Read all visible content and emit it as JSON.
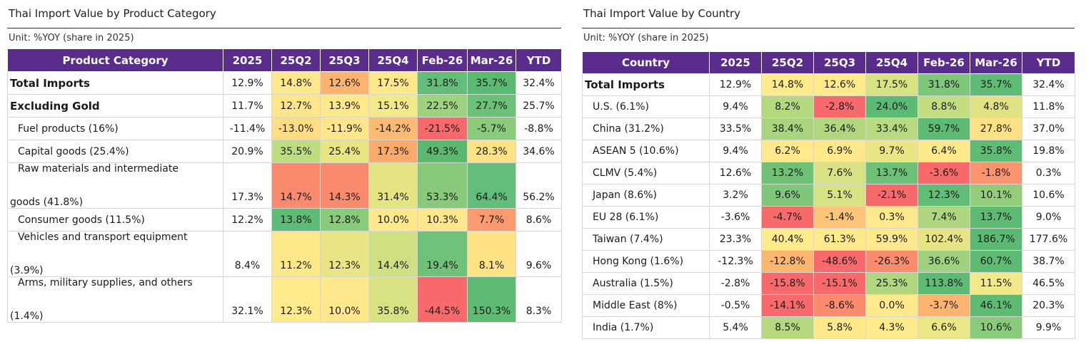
{
  "product_panel": {
    "title": "Thai Import Value by Product Category",
    "unit": "Unit: %YOY (share in 2025)",
    "headers": [
      "Product Category",
      "2025",
      "25Q2",
      "25Q3",
      "25Q4",
      "Feb-26",
      "Mar-26",
      "YTD"
    ],
    "rows": [
      {
        "label": "Total Imports",
        "values": [
          "12.9%",
          "14.8%",
          "12.6%",
          "17.5%",
          "31.8%",
          "35.7%",
          "32.4%"
        ],
        "colors": [
          "#ffe98c",
          "#fdb470",
          "#ffe98c",
          "#63be7b",
          "#5aba72",
          ""
        ]
      },
      {
        "label": "Excluding Gold",
        "values": [
          "11.7%",
          "12.7%",
          "13.9%",
          "15.1%",
          "22.5%",
          "27.7%",
          "25.7%"
        ],
        "colors": [
          "#ffe68a",
          "#ffe98c",
          "#f2e98a",
          "#9fd27f",
          "#6cc178",
          ""
        ]
      },
      {
        "label": "Fuel products (16%)",
        "values": [
          "-11.4%",
          "-13.0%",
          "-11.9%",
          "-14.2%",
          "-21.5%",
          "-5.7%",
          "-8.8%"
        ],
        "colors": [
          "#ffdd82",
          "#ffe58b",
          "#fdba72",
          "#f8696b",
          "#8acb7b",
          ""
        ]
      },
      {
        "label": "Capital goods (25.4%)",
        "values": [
          "20.9%",
          "35.5%",
          "25.4%",
          "17.3%",
          "49.3%",
          "28.3%",
          "34.6%"
        ],
        "colors": [
          "#bfdc81",
          "#e8e583",
          "#fcaa6b",
          "#5ab96f",
          "#fee283",
          ""
        ]
      },
      {
        "label_lines": [
          "Raw materials and intermediate",
          "goods (41.8%)"
        ],
        "values": [
          "17.3%",
          "14.7%",
          "14.3%",
          "31.4%",
          "53.3%",
          "64.4%",
          "56.2%"
        ],
        "colors": [
          "#f98a6e",
          "#f98a6e",
          "#e4e483",
          "#88c97a",
          "#63be7b",
          ""
        ]
      },
      {
        "label": "Consumer goods (11.5%)",
        "values": [
          "12.2%",
          "13.8%",
          "12.8%",
          "10.0%",
          "10.3%",
          "7.7%",
          "8.6%"
        ],
        "colors": [
          "#5fbc76",
          "#8acb7b",
          "#ffe88c",
          "#ffe88c",
          "#fb9a6e",
          ""
        ]
      },
      {
        "label_lines": [
          "Vehicles and transport equipment",
          "(3.9%)"
        ],
        "values": [
          "8.4%",
          "11.2%",
          "12.3%",
          "14.4%",
          "19.4%",
          "8.1%",
          "9.6%"
        ],
        "colors": [
          "#fde98a",
          "#e9e584",
          "#cfe082",
          "#6fc277",
          "#fee283",
          ""
        ]
      },
      {
        "label_lines": [
          "Arms, military supplies, and others",
          "(1.4%)"
        ],
        "values": [
          "32.1%",
          "12.3%",
          "10.0%",
          "35.8%",
          "-44.5%",
          "150.3%",
          "8.3%"
        ],
        "colors": [
          "#ffeb8b",
          "#ffe88c",
          "#d9e283",
          "#f8696b",
          "#5dbb73",
          ""
        ]
      }
    ]
  },
  "country_panel": {
    "title": "Thai Import Value by Country",
    "unit": "Unit: %YOY (share in 2025)",
    "headers": [
      "Country",
      "2025",
      "25Q2",
      "25Q3",
      "25Q4",
      "Feb-26",
      "Mar-26",
      "YTD"
    ],
    "rows": [
      {
        "label": "Total Imports",
        "values": [
          "12.9%",
          "14.8%",
          "12.6%",
          "17.5%",
          "31.8%",
          "35.7%",
          "32.4%"
        ],
        "colors": [
          "#ffeb8b",
          "#ffeb8b",
          "#d8e283",
          "#7ec679",
          "#5fbc74",
          ""
        ]
      },
      {
        "label": "U.S. (6.1%)",
        "values": [
          "9.4%",
          "8.2%",
          "-2.8%",
          "24.0%",
          "8.8%",
          "4.8%",
          "11.8%"
        ],
        "colors": [
          "#b4d87f",
          "#f8696b",
          "#5cbb72",
          "#c3dd81",
          "#e0e283",
          ""
        ]
      },
      {
        "label": "China (31.2%)",
        "values": [
          "33.5%",
          "38.4%",
          "36.4%",
          "33.4%",
          "59.7%",
          "27.8%",
          "37.0%"
        ],
        "colors": [
          "#a8d57e",
          "#b2d77e",
          "#b9da80",
          "#5dbb73",
          "#ffe183",
          ""
        ]
      },
      {
        "label": "ASEAN 5 (10.6%)",
        "values": [
          "9.4%",
          "6.2%",
          "6.9%",
          "9.7%",
          "6.4%",
          "35.8%",
          "19.8%"
        ],
        "colors": [
          "#ffe98c",
          "#ffe98c",
          "#eae686",
          "#ffe98c",
          "#5fbc75",
          ""
        ]
      },
      {
        "label": "CLMV (5.4%)",
        "values": [
          "12.6%",
          "13.2%",
          "7.6%",
          "13.7%",
          "-3.6%",
          "-1.8%",
          "0.3%"
        ],
        "colors": [
          "#6ec276",
          "#d9e284",
          "#6cc176",
          "#f8696b",
          "#fa946e",
          ""
        ]
      },
      {
        "label": "Japan (8.6%)",
        "values": [
          "3.2%",
          "9.6%",
          "5.1%",
          "-2.1%",
          "12.3%",
          "10.1%",
          "10.6%"
        ],
        "colors": [
          "#7fc67a",
          "#d6e283",
          "#f8696b",
          "#62bd76",
          "#93cd7c",
          ""
        ]
      },
      {
        "label": "EU 28 (6.1%)",
        "values": [
          "-3.6%",
          "-4.7%",
          "-1.4%",
          "0.3%",
          "7.4%",
          "13.7%",
          "9.0%"
        ],
        "colors": [
          "#f8696b",
          "#fdc47a",
          "#ffe98c",
          "#aed67e",
          "#5dbb73",
          ""
        ]
      },
      {
        "label": "Taiwan (7.4%)",
        "values": [
          "23.3%",
          "40.4%",
          "61.3%",
          "59.9%",
          "102.4%",
          "186.7%",
          "177.6%"
        ],
        "colors": [
          "#ffeb8b",
          "#ffe98c",
          "#ffe98c",
          "#e8e584",
          "#5aba72",
          ""
        ]
      },
      {
        "label": "Hong Kong (1.6%)",
        "values": [
          "-12.3%",
          "-12.8%",
          "-48.6%",
          "-26.3%",
          "36.6%",
          "60.7%",
          "38.7%"
        ],
        "colors": [
          "#fdb66f",
          "#f8696b",
          "#fa8c6d",
          "#9fd27f",
          "#5dbb73",
          ""
        ]
      },
      {
        "label": "Australia (1.5%)",
        "values": [
          "-2.8%",
          "-15.8%",
          "-15.1%",
          "25.3%",
          "113.8%",
          "11.5%",
          "46.5%"
        ],
        "colors": [
          "#f8696b",
          "#f8696b",
          "#b0d77f",
          "#5dbb73",
          "#f3e98a",
          ""
        ]
      },
      {
        "label": "Middle East (8%)",
        "values": [
          "-0.5%",
          "-14.1%",
          "-8.6%",
          "0.0%",
          "-3.7%",
          "46.1%",
          "20.3%"
        ],
        "colors": [
          "#f8696b",
          "#fa8c6d",
          "#ffe98c",
          "#fdb470",
          "#5dbb73",
          ""
        ]
      },
      {
        "label": "India (1.7%)",
        "values": [
          "5.4%",
          "8.5%",
          "5.8%",
          "4.3%",
          "6.6%",
          "10.6%",
          "9.9%"
        ],
        "colors": [
          "#b6d97f",
          "#fde98a",
          "#ffeb8b",
          "#eae786",
          "#8acb7b",
          ""
        ]
      }
    ]
  }
}
